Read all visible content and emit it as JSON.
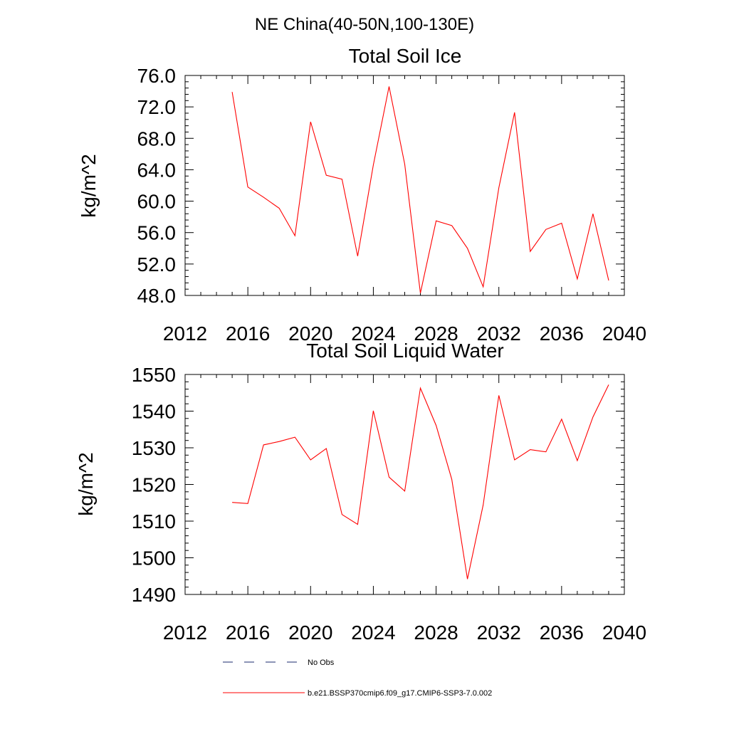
{
  "figure": {
    "title": "NE China(40-50N,100-130E)"
  },
  "chart_data": [
    {
      "type": "line",
      "title": "Total Soil Ice",
      "ylabel": "kg/m^2",
      "xlabel": "",
      "xlim": [
        2012,
        2040
      ],
      "ylim": [
        48,
        76
      ],
      "xticks": [
        2012,
        2016,
        2020,
        2024,
        2028,
        2032,
        2036,
        2040
      ],
      "yticks": [
        48.0,
        52.0,
        56.0,
        60.0,
        64.0,
        68.0,
        72.0,
        76.0
      ],
      "ytick_labels": [
        "48.0",
        "52.0",
        "56.0",
        "60.0",
        "64.0",
        "68.0",
        "72.0",
        "76.0"
      ],
      "series": [
        {
          "name": "b.e21.BSSP370cmip6.f09_g17.CMIP6-SSP3-7.0.002",
          "color": "#ff0000",
          "x": [
            2015,
            2016,
            2017,
            2018,
            2019,
            2020,
            2021,
            2022,
            2023,
            2024,
            2025,
            2026,
            2027,
            2028,
            2029,
            2030,
            2031,
            2032,
            2033,
            2034,
            2035,
            2036,
            2037,
            2038,
            2039
          ],
          "y": [
            73.9,
            61.8,
            60.5,
            59.1,
            55.6,
            70.1,
            63.3,
            62.8,
            53.0,
            64.6,
            74.6,
            64.7,
            48.3,
            57.5,
            56.9,
            54.0,
            49.1,
            61.7,
            71.3,
            53.6,
            56.4,
            57.2,
            50.1,
            58.4,
            49.9
          ]
        }
      ]
    },
    {
      "type": "line",
      "title": "Total Soil Liquid Water",
      "ylabel": "kg/m^2",
      "xlabel": "",
      "xlim": [
        2012,
        2040
      ],
      "ylim": [
        1490,
        1550
      ],
      "xticks": [
        2012,
        2016,
        2020,
        2024,
        2028,
        2032,
        2036,
        2040
      ],
      "yticks": [
        1490,
        1500,
        1510,
        1520,
        1530,
        1540,
        1550
      ],
      "ytick_labels": [
        "1490",
        "1500",
        "1510",
        "1520",
        "1530",
        "1540",
        "1550"
      ],
      "series": [
        {
          "name": "b.e21.BSSP370cmip6.f09_g17.CMIP6-SSP3-7.0.002",
          "color": "#ff0000",
          "x": [
            2015,
            2016,
            2017,
            2018,
            2019,
            2020,
            2021,
            2022,
            2023,
            2024,
            2025,
            2026,
            2027,
            2028,
            2029,
            2030,
            2031,
            2032,
            2033,
            2034,
            2035,
            2036,
            2037,
            2038,
            2039
          ],
          "y": [
            1515.1,
            1514.8,
            1530.8,
            1531.7,
            1532.9,
            1526.7,
            1529.8,
            1511.8,
            1509.1,
            1540.1,
            1522.0,
            1518.2,
            1546.3,
            1536.1,
            1521.4,
            1494.2,
            1514.4,
            1544.3,
            1526.7,
            1529.5,
            1528.9,
            1537.8,
            1526.5,
            1538.4,
            1547.2
          ]
        }
      ]
    }
  ],
  "legend": [
    {
      "label": "No Obs",
      "style": "dashed",
      "color": "#1a2a6c"
    },
    {
      "label": "b.e21.BSSP370cmip6.f09_g17.CMIP6-SSP3-7.0.002",
      "style": "solid",
      "color": "#ff0000"
    }
  ]
}
